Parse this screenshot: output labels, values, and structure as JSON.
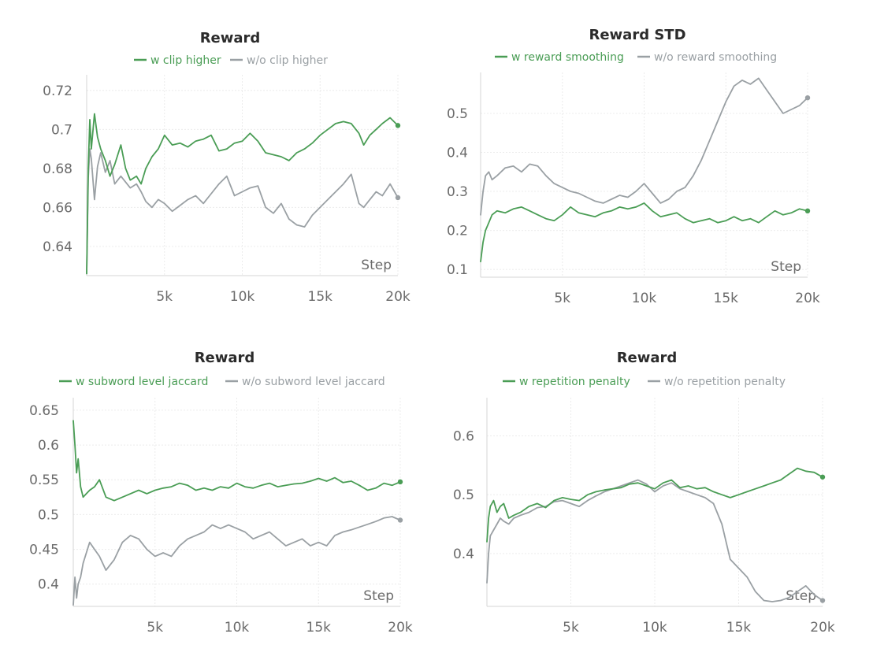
{
  "chart_data": [
    {
      "type": "line",
      "title": "Reward",
      "xlabel": "Step",
      "xlim": [
        0,
        20000
      ],
      "ylim": [
        0.625,
        0.728
      ],
      "xticks": [
        5000,
        10000,
        15000,
        20000
      ],
      "xtick_labels": [
        "5k",
        "10k",
        "15k",
        "20k"
      ],
      "yticks": [
        0.64,
        0.66,
        0.68,
        0.7,
        0.72
      ],
      "ytick_labels": [
        "0.64",
        "0.66",
        "0.68",
        "0.7",
        "0.72"
      ],
      "colors": [
        "#4a9d55",
        "#9aa0a4"
      ],
      "series": [
        {
          "name": "w clip higher",
          "x": [
            0,
            100,
            200,
            300,
            500,
            700,
            900,
            1200,
            1500,
            1800,
            2200,
            2500,
            2800,
            3200,
            3500,
            3800,
            4200,
            4600,
            5000,
            5500,
            6000,
            6500,
            7000,
            7500,
            8000,
            8500,
            9000,
            9500,
            10000,
            10500,
            11000,
            11500,
            12000,
            12500,
            13000,
            13500,
            14000,
            14500,
            15000,
            15500,
            16000,
            16500,
            17000,
            17500,
            17800,
            18200,
            18600,
            19000,
            19500,
            20000
          ],
          "y": [
            0.626,
            0.68,
            0.705,
            0.69,
            0.708,
            0.696,
            0.69,
            0.684,
            0.676,
            0.682,
            0.692,
            0.68,
            0.674,
            0.676,
            0.672,
            0.68,
            0.686,
            0.69,
            0.697,
            0.692,
            0.693,
            0.691,
            0.694,
            0.695,
            0.697,
            0.689,
            0.69,
            0.693,
            0.694,
            0.698,
            0.694,
            0.688,
            0.687,
            0.686,
            0.684,
            0.688,
            0.69,
            0.693,
            0.697,
            0.7,
            0.703,
            0.704,
            0.703,
            0.698,
            0.692,
            0.697,
            0.7,
            0.703,
            0.706,
            0.702
          ]
        },
        {
          "name": "w/o clip higher",
          "x": [
            0,
            100,
            200,
            300,
            500,
            700,
            900,
            1200,
            1500,
            1800,
            2200,
            2500,
            2800,
            3200,
            3500,
            3800,
            4200,
            4600,
            5000,
            5500,
            6000,
            6500,
            7000,
            7500,
            8000,
            8500,
            9000,
            9500,
            10000,
            10500,
            11000,
            11500,
            12000,
            12500,
            13000,
            13500,
            14000,
            14500,
            15000,
            15500,
            16000,
            16500,
            17000,
            17500,
            17800,
            18200,
            18600,
            19000,
            19500,
            20000
          ],
          "y": [
            0.626,
            0.675,
            0.69,
            0.685,
            0.664,
            0.681,
            0.688,
            0.678,
            0.684,
            0.672,
            0.676,
            0.673,
            0.67,
            0.672,
            0.668,
            0.663,
            0.66,
            0.664,
            0.662,
            0.658,
            0.661,
            0.664,
            0.666,
            0.662,
            0.667,
            0.672,
            0.676,
            0.666,
            0.668,
            0.67,
            0.671,
            0.66,
            0.657,
            0.662,
            0.654,
            0.651,
            0.65,
            0.656,
            0.66,
            0.664,
            0.668,
            0.672,
            0.677,
            0.662,
            0.66,
            0.664,
            0.668,
            0.666,
            0.672,
            0.665
          ]
        }
      ]
    },
    {
      "type": "line",
      "title": "Reward STD",
      "xlabel": "Step",
      "xlim": [
        0,
        20000
      ],
      "ylim": [
        0.08,
        0.605
      ],
      "xticks": [
        5000,
        10000,
        15000,
        20000
      ],
      "xtick_labels": [
        "5k",
        "10k",
        "15k",
        "20k"
      ],
      "yticks": [
        0.1,
        0.2,
        0.3,
        0.4,
        0.5
      ],
      "ytick_labels": [
        "0.1",
        "0.2",
        "0.3",
        "0.4",
        "0.5"
      ],
      "colors": [
        "#4a9d55",
        "#9aa0a4"
      ],
      "series": [
        {
          "name": "w reward smoothing",
          "x": [
            0,
            150,
            300,
            500,
            700,
            1000,
            1500,
            2000,
            2500,
            3000,
            3500,
            4000,
            4500,
            5000,
            5500,
            6000,
            6500,
            7000,
            7500,
            8000,
            8500,
            9000,
            9500,
            10000,
            10500,
            11000,
            11500,
            12000,
            12500,
            13000,
            13500,
            14000,
            14500,
            15000,
            15500,
            16000,
            16500,
            17000,
            17500,
            18000,
            18500,
            19000,
            19500,
            20000
          ],
          "y": [
            0.12,
            0.17,
            0.2,
            0.22,
            0.24,
            0.25,
            0.245,
            0.255,
            0.26,
            0.25,
            0.24,
            0.23,
            0.225,
            0.24,
            0.26,
            0.245,
            0.24,
            0.235,
            0.245,
            0.25,
            0.26,
            0.255,
            0.26,
            0.27,
            0.25,
            0.235,
            0.24,
            0.245,
            0.23,
            0.22,
            0.225,
            0.23,
            0.22,
            0.225,
            0.235,
            0.225,
            0.23,
            0.22,
            0.235,
            0.25,
            0.24,
            0.245,
            0.255,
            0.25
          ]
        },
        {
          "name": "w/o reward smoothing",
          "x": [
            0,
            150,
            300,
            500,
            700,
            1000,
            1500,
            2000,
            2500,
            3000,
            3500,
            4000,
            4500,
            5000,
            5500,
            6000,
            6500,
            7000,
            7500,
            8000,
            8500,
            9000,
            9500,
            10000,
            10500,
            11000,
            11500,
            12000,
            12500,
            13000,
            13500,
            14000,
            14500,
            15000,
            15500,
            16000,
            16500,
            17000,
            17500,
            18000,
            18500,
            19000,
            19500,
            20000
          ],
          "y": [
            0.24,
            0.3,
            0.34,
            0.35,
            0.33,
            0.34,
            0.36,
            0.365,
            0.35,
            0.37,
            0.365,
            0.34,
            0.32,
            0.31,
            0.3,
            0.295,
            0.285,
            0.275,
            0.27,
            0.28,
            0.29,
            0.285,
            0.3,
            0.32,
            0.295,
            0.27,
            0.28,
            0.3,
            0.31,
            0.34,
            0.38,
            0.43,
            0.48,
            0.53,
            0.57,
            0.585,
            0.575,
            0.59,
            0.56,
            0.53,
            0.5,
            0.51,
            0.52,
            0.54
          ]
        }
      ]
    },
    {
      "type": "line",
      "title": "Reward",
      "xlabel": "Step",
      "xlim": [
        0,
        20000
      ],
      "ylim": [
        0.368,
        0.668
      ],
      "xticks": [
        5000,
        10000,
        15000,
        20000
      ],
      "xtick_labels": [
        "5k",
        "10k",
        "15k",
        "20k"
      ],
      "yticks": [
        0.4,
        0.45,
        0.5,
        0.55,
        0.6,
        0.65
      ],
      "ytick_labels": [
        "0.4",
        "0.45",
        "0.5",
        "0.55",
        "0.6",
        "0.65"
      ],
      "colors": [
        "#4a9d55",
        "#9aa0a4"
      ],
      "series": [
        {
          "name": "w subword level jaccard",
          "x": [
            0,
            100,
            200,
            300,
            450,
            600,
            800,
            1000,
            1300,
            1600,
            2000,
            2500,
            3000,
            3500,
            4000,
            4500,
            5000,
            5500,
            6000,
            6500,
            7000,
            7500,
            8000,
            8500,
            9000,
            9500,
            10000,
            10500,
            11000,
            11500,
            12000,
            12500,
            13000,
            13500,
            14000,
            14500,
            15000,
            15500,
            16000,
            16500,
            17000,
            17500,
            18000,
            18500,
            19000,
            19500,
            20000
          ],
          "y": [
            0.635,
            0.6,
            0.56,
            0.58,
            0.54,
            0.525,
            0.53,
            0.535,
            0.54,
            0.55,
            0.525,
            0.52,
            0.525,
            0.53,
            0.535,
            0.53,
            0.535,
            0.538,
            0.54,
            0.545,
            0.542,
            0.535,
            0.538,
            0.535,
            0.54,
            0.538,
            0.545,
            0.54,
            0.538,
            0.542,
            0.545,
            0.54,
            0.542,
            0.544,
            0.545,
            0.548,
            0.552,
            0.548,
            0.553,
            0.546,
            0.548,
            0.542,
            0.535,
            0.538,
            0.545,
            0.542,
            0.547
          ]
        },
        {
          "name": "w/o subword level jaccard",
          "x": [
            0,
            100,
            200,
            300,
            450,
            600,
            800,
            1000,
            1300,
            1600,
            2000,
            2500,
            3000,
            3500,
            4000,
            4500,
            5000,
            5500,
            6000,
            6500,
            7000,
            7500,
            8000,
            8500,
            9000,
            9500,
            10000,
            10500,
            11000,
            11500,
            12000,
            12500,
            13000,
            13500,
            14000,
            14500,
            15000,
            15500,
            16000,
            16500,
            17000,
            17500,
            18000,
            18500,
            19000,
            19500,
            20000
          ],
          "y": [
            0.37,
            0.41,
            0.38,
            0.4,
            0.41,
            0.43,
            0.445,
            0.46,
            0.45,
            0.44,
            0.42,
            0.435,
            0.46,
            0.47,
            0.465,
            0.45,
            0.44,
            0.445,
            0.44,
            0.455,
            0.465,
            0.47,
            0.475,
            0.485,
            0.48,
            0.485,
            0.48,
            0.475,
            0.465,
            0.47,
            0.475,
            0.465,
            0.455,
            0.46,
            0.465,
            0.455,
            0.46,
            0.455,
            0.47,
            0.475,
            0.478,
            0.482,
            0.486,
            0.49,
            0.495,
            0.497,
            0.492
          ]
        }
      ]
    },
    {
      "type": "line",
      "title": "Reward",
      "xlabel": "Step",
      "xlim": [
        0,
        20000
      ],
      "ylim": [
        0.31,
        0.665
      ],
      "xticks": [
        5000,
        10000,
        15000,
        20000
      ],
      "xtick_labels": [
        "5k",
        "10k",
        "15k",
        "20k"
      ],
      "yticks": [
        0.4,
        0.5,
        0.6
      ],
      "ytick_labels": [
        "0.4",
        "0.5",
        "0.6"
      ],
      "colors": [
        "#4a9d55",
        "#9aa0a4"
      ],
      "series": [
        {
          "name": "w repetition penalty",
          "x": [
            0,
            100,
            200,
            400,
            600,
            800,
            1000,
            1300,
            1600,
            2000,
            2500,
            3000,
            3500,
            4000,
            4500,
            5000,
            5500,
            6000,
            6500,
            7000,
            7500,
            8000,
            8500,
            9000,
            9500,
            10000,
            10500,
            11000,
            11500,
            12000,
            12500,
            13000,
            13500,
            14000,
            14500,
            15000,
            15500,
            16000,
            16500,
            17000,
            17500,
            18000,
            18500,
            19000,
            19500,
            20000
          ],
          "y": [
            0.42,
            0.46,
            0.48,
            0.49,
            0.47,
            0.48,
            0.485,
            0.46,
            0.465,
            0.47,
            0.48,
            0.485,
            0.478,
            0.49,
            0.495,
            0.492,
            0.49,
            0.5,
            0.505,
            0.508,
            0.51,
            0.512,
            0.518,
            0.52,
            0.515,
            0.51,
            0.52,
            0.525,
            0.512,
            0.515,
            0.51,
            0.512,
            0.505,
            0.5,
            0.495,
            0.5,
            0.505,
            0.51,
            0.515,
            0.52,
            0.525,
            0.535,
            0.545,
            0.54,
            0.538,
            0.53
          ]
        },
        {
          "name": "w/o repetition penalty",
          "x": [
            0,
            100,
            200,
            400,
            600,
            800,
            1000,
            1300,
            1600,
            2000,
            2500,
            3000,
            3500,
            4000,
            4500,
            5000,
            5500,
            6000,
            6500,
            7000,
            7500,
            8000,
            8500,
            9000,
            9500,
            10000,
            10500,
            11000,
            11500,
            12000,
            12500,
            13000,
            13500,
            14000,
            14500,
            15000,
            15500,
            16000,
            16500,
            17000,
            17500,
            18000,
            18500,
            19000,
            19500,
            20000
          ],
          "y": [
            0.35,
            0.4,
            0.43,
            0.44,
            0.45,
            0.46,
            0.455,
            0.45,
            0.46,
            0.465,
            0.47,
            0.478,
            0.48,
            0.488,
            0.49,
            0.485,
            0.48,
            0.49,
            0.498,
            0.505,
            0.51,
            0.515,
            0.52,
            0.525,
            0.518,
            0.505,
            0.515,
            0.52,
            0.51,
            0.505,
            0.5,
            0.495,
            0.485,
            0.45,
            0.39,
            0.375,
            0.36,
            0.335,
            0.32,
            0.318,
            0.32,
            0.325,
            0.335,
            0.345,
            0.33,
            0.32
          ]
        }
      ]
    }
  ]
}
